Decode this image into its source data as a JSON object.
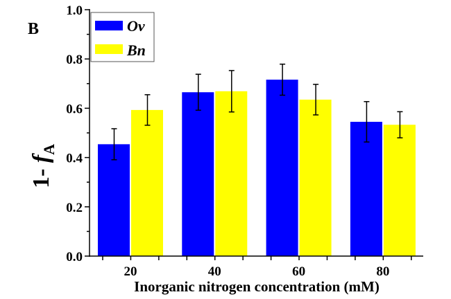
{
  "chart_data": {
    "type": "bar",
    "panel_label": "B",
    "title": "",
    "xlabel": "Inorganic nitrogen concentration (mM)",
    "ylabel": {
      "prefix": "1- ",
      "italic": "f",
      "subscript": "A"
    },
    "categories": [
      "20",
      "40",
      "60",
      "80"
    ],
    "series": [
      {
        "name": "Ov",
        "color": "#0000ff",
        "values": [
          0.454,
          0.665,
          0.716,
          0.545
        ],
        "errors": [
          0.063,
          0.073,
          0.063,
          0.082
        ]
      },
      {
        "name": "Bn",
        "color": "#ffff00",
        "values": [
          0.593,
          0.669,
          0.635,
          0.533
        ],
        "errors": [
          0.062,
          0.084,
          0.062,
          0.053
        ]
      }
    ],
    "ylim": [
      0,
      1.0
    ],
    "yticks": [
      "0.0",
      "0.2",
      "0.4",
      "0.6",
      "0.8",
      "1.0"
    ],
    "grid": false,
    "legend_position": "top-left"
  }
}
